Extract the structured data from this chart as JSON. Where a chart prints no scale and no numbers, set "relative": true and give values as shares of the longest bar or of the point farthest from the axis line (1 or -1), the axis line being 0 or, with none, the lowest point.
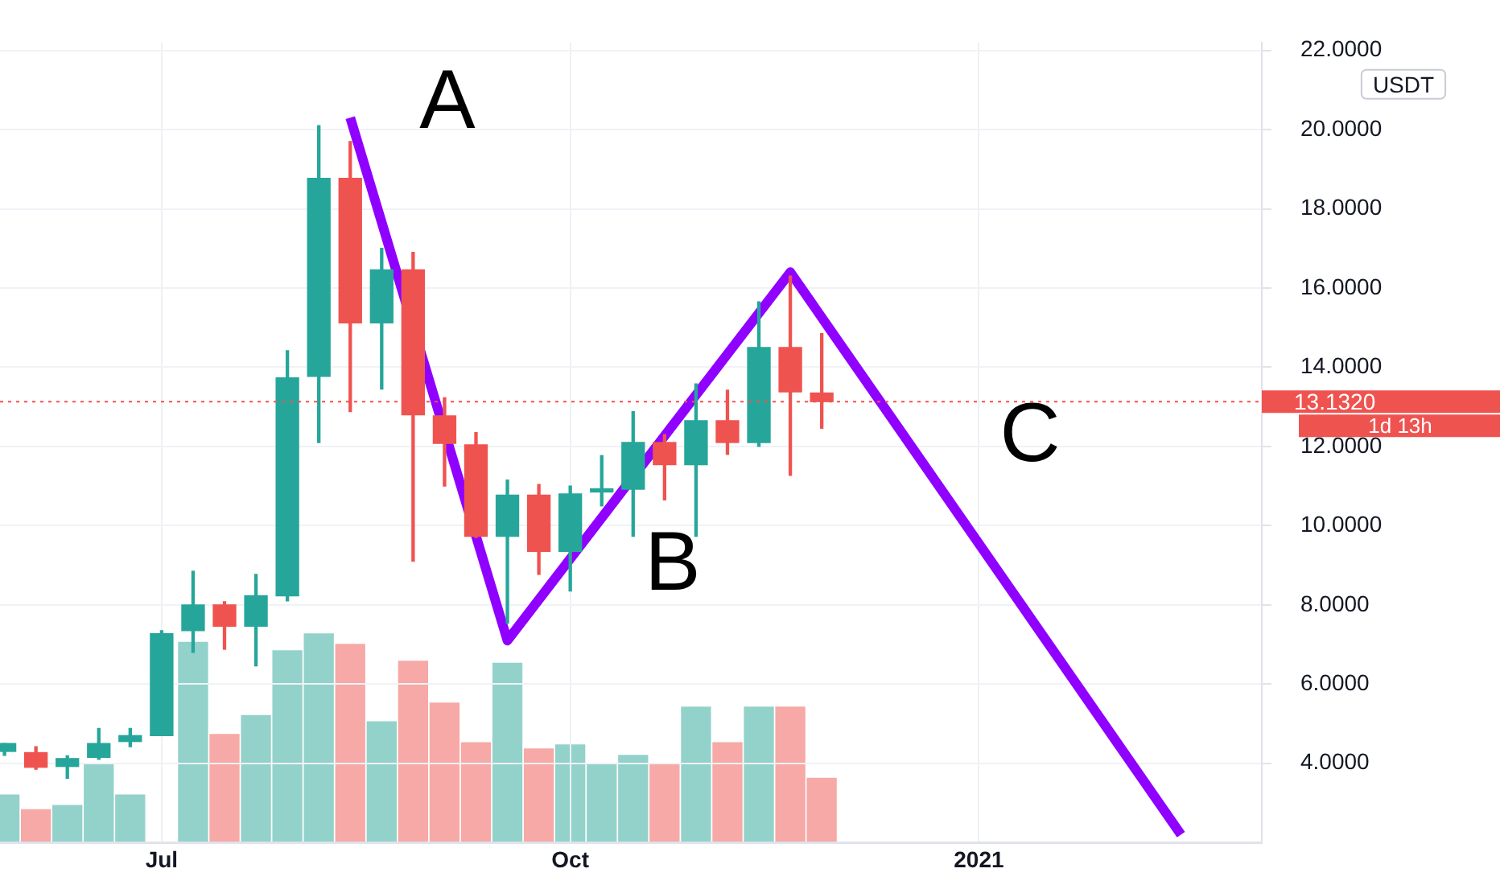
{
  "chart_data": [
    {
      "type": "candlestick",
      "x": [
        "2020-06-01",
        "2020-06-08",
        "2020-06-15",
        "2020-06-22",
        "2020-06-29",
        "2020-07-06",
        "2020-07-13",
        "2020-07-20",
        "2020-07-27",
        "2020-08-03",
        "2020-08-10",
        "2020-08-17",
        "2020-08-24",
        "2020-08-31",
        "2020-09-07",
        "2020-09-14",
        "2020-09-21",
        "2020-09-28",
        "2020-10-05",
        "2020-10-12",
        "2020-10-19",
        "2020-10-26",
        "2020-11-02",
        "2020-11-09",
        "2020-11-16",
        "2020-11-23",
        "2020-11-30"
      ],
      "series": [
        {
          "ohlc": [
            [
              4.3,
              4.5,
              4.2,
              4.5
            ],
            [
              4.27,
              4.42,
              3.85,
              3.9
            ],
            [
              3.92,
              4.19,
              3.62,
              4.12
            ],
            [
              4.15,
              4.88,
              4.1,
              4.5
            ],
            [
              4.55,
              4.88,
              4.42,
              4.7
            ],
            [
              4.7,
              7.35,
              4.7,
              7.27
            ],
            [
              7.35,
              8.85,
              6.8,
              8.0
            ],
            [
              8.0,
              8.08,
              6.88,
              7.46
            ],
            [
              7.46,
              8.77,
              6.46,
              8.23
            ],
            [
              8.23,
              14.42,
              8.1,
              13.73
            ],
            [
              13.77,
              20.1,
              12.1,
              18.77
            ],
            [
              18.77,
              19.7,
              12.88,
              15.12
            ],
            [
              15.12,
              17.0,
              13.45,
              16.46
            ],
            [
              16.46,
              16.9,
              9.1,
              12.8
            ],
            [
              12.77,
              13.23,
              11.0,
              12.08
            ],
            [
              12.04,
              12.35,
              9.7,
              9.73
            ],
            [
              9.73,
              11.15,
              7.54,
              10.77
            ],
            [
              10.77,
              11.04,
              8.77,
              9.35
            ],
            [
              9.35,
              11.0,
              8.35,
              10.8
            ],
            [
              10.85,
              11.77,
              10.5,
              10.92
            ],
            [
              10.92,
              12.88,
              9.73,
              12.1
            ],
            [
              12.1,
              12.3,
              10.65,
              11.54
            ],
            [
              11.54,
              13.58,
              9.73,
              12.65
            ],
            [
              12.65,
              13.42,
              11.8,
              12.1
            ],
            [
              12.1,
              15.65,
              12.0,
              14.5
            ],
            [
              14.5,
              16.3,
              11.27,
              13.38
            ],
            [
              13.35,
              14.85,
              12.46,
              13.132
            ]
          ],
          "colors": [
            "#26a69a",
            "#ef5350",
            "#26a69a",
            "#26a69a",
            "#26a69a",
            "#26a69a",
            "#26a69a",
            "#ef5350",
            "#26a69a",
            "#26a69a",
            "#26a69a",
            "#ef5350",
            "#26a69a",
            "#ef5350",
            "#ef5350",
            "#ef5350",
            "#26a69a",
            "#ef5350",
            "#26a69a",
            "#26a69a",
            "#26a69a",
            "#ef5350",
            "#26a69a",
            "#ef5350",
            "#26a69a",
            "#ef5350",
            "#ef5350"
          ]
        },
        {
          "type": "line",
          "color": "#9000ff",
          "x": [
            "2020-08-17",
            "2020-09-21",
            "2020-11-23",
            "2021-02-18"
          ],
          "values": [
            20.3,
            7.1,
            16.4,
            2.2
          ]
        }
      ],
      "xlim": [
        "2020-05-31",
        "2021-03-08"
      ],
      "xticks": [
        {
          "value": "2020-07-06",
          "label": "Jul"
        },
        {
          "value": "2020-10-05",
          "label": "Oct"
        },
        {
          "value": "2021-01-04",
          "label": "2021"
        }
      ],
      "ylim": [
        2,
        22.2
      ],
      "yticks": [
        {
          "value": 4,
          "label": "4.0000"
        },
        {
          "value": 6,
          "label": "6.0000"
        },
        {
          "value": 8,
          "label": "8.0000"
        },
        {
          "value": 10,
          "label": "10.0000"
        },
        {
          "value": 12,
          "label": "12.0000"
        },
        {
          "value": 14,
          "label": "14.0000"
        },
        {
          "value": 16,
          "label": "16.0000"
        },
        {
          "value": 18,
          "label": "18.0000"
        },
        {
          "value": 20,
          "label": "20.0000"
        },
        {
          "value": 22,
          "label": "22.0000"
        }
      ],
      "ref_lines": [
        {
          "axis": "y",
          "value": 13.132,
          "label": "13.1320",
          "color": "#ef5350",
          "line_style": "dotted"
        }
      ],
      "annotations": [
        "USDT",
        "1d 13h",
        "A",
        "B",
        "C"
      ],
      "grid": true,
      "marker": "none"
    },
    {
      "type": "bar",
      "relative": true,
      "x": [
        "2020-06-01",
        "2020-06-08",
        "2020-06-15",
        "2020-06-22",
        "2020-06-29",
        "2020-07-06",
        "2020-07-13",
        "2020-07-20",
        "2020-07-27",
        "2020-08-03",
        "2020-08-10",
        "2020-08-17",
        "2020-08-24",
        "2020-08-31",
        "2020-09-07",
        "2020-09-14",
        "2020-09-21",
        "2020-09-28",
        "2020-10-05",
        "2020-10-12",
        "2020-10-19",
        "2020-10-26",
        "2020-11-02",
        "2020-11-09",
        "2020-11-16",
        "2020-11-23",
        "2020-11-30"
      ],
      "xlim": [
        "2020-05-31",
        "2021-03-08"
      ],
      "values": [
        0.23,
        0.16,
        0.18,
        0.38,
        0.23,
        null,
        0.96,
        0.52,
        0.61,
        0.92,
        1,
        0.95,
        0.58,
        0.87,
        0.67,
        0.48,
        0.86,
        0.45,
        0.47,
        0.38,
        0.42,
        0.38,
        0.65,
        0.48,
        0.65,
        0.65,
        0.31
      ],
      "colors": [
        "#93d2cb",
        "#f6a9a6",
        "#93d2cb",
        "#93d2cb",
        "#93d2cb",
        "#93d2cb",
        "#93d2cb",
        "#f6a9a6",
        "#93d2cb",
        "#93d2cb",
        "#93d2cb",
        "#f6a9a6",
        "#93d2cb",
        "#f6a9a6",
        "#f6a9a6",
        "#f6a9a6",
        "#93d2cb",
        "#f6a9a6",
        "#93d2cb",
        "#93d2cb",
        "#93d2cb",
        "#f6a9a6",
        "#93d2cb",
        "#f6a9a6",
        "#93d2cb",
        "#f6a9a6",
        "#f6a9a6"
      ]
    }
  ]
}
